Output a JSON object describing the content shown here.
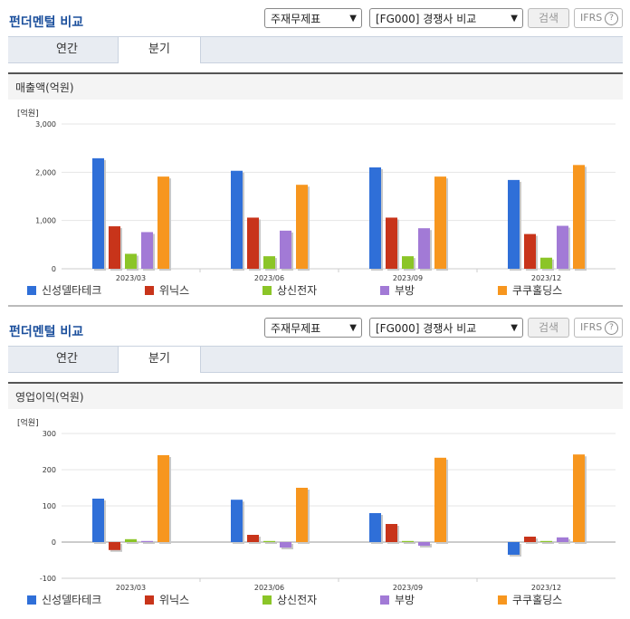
{
  "panels": [
    {
      "title": "펀더멘털 비교",
      "select_statement": "주재무제표",
      "select_compare": "[FG000] 경쟁사 비교",
      "search_label": "검색",
      "ifrs_label": "IFRS",
      "help_icon": "?",
      "tabs": [
        "연간",
        "분기"
      ],
      "active_tab": "분기",
      "section_title": "매출액(억원)",
      "unit": "[억원]"
    },
    {
      "title": "펀더멘털 비교",
      "select_statement": "주재무제표",
      "select_compare": "[FG000] 경쟁사 비교",
      "search_label": "검색",
      "ifrs_label": "IFRS",
      "help_icon": "?",
      "tabs": [
        "연간",
        "분기"
      ],
      "active_tab": "분기",
      "section_title": "영업이익(억원)",
      "unit": "[억원]"
    }
  ],
  "chart_data": [
    {
      "type": "bar",
      "categories": [
        "2023/03",
        "2023/06",
        "2023/09",
        "2023/12"
      ],
      "ylim": [
        0,
        3000
      ],
      "yticks": [
        0,
        1000,
        2000,
        3000
      ],
      "ytick_labels": [
        "0",
        "1,000",
        "2,000",
        "3,000"
      ],
      "legend_position": "bottom",
      "series": [
        {
          "name": "신성델타테크",
          "color": "#2f6fd8",
          "values": [
            2290,
            2030,
            2100,
            1840
          ]
        },
        {
          "name": "위닉스",
          "color": "#c8341a",
          "values": [
            880,
            1060,
            1060,
            720
          ]
        },
        {
          "name": "상신전자",
          "color": "#8bc528",
          "values": [
            310,
            260,
            260,
            230
          ]
        },
        {
          "name": "부방",
          "color": "#a27ad6",
          "values": [
            760,
            790,
            840,
            890
          ]
        },
        {
          "name": "쿠쿠홀딩스",
          "color": "#f7961e",
          "values": [
            1910,
            1740,
            1910,
            2150
          ]
        }
      ]
    },
    {
      "type": "bar",
      "categories": [
        "2023/03",
        "2023/06",
        "2023/09",
        "2023/12"
      ],
      "ylim": [
        -100,
        300
      ],
      "yticks": [
        -100,
        0,
        100,
        200,
        300
      ],
      "ytick_labels": [
        "-100",
        "0",
        "100",
        "200",
        "300"
      ],
      "legend_position": "bottom",
      "series": [
        {
          "name": "신성델타테크",
          "color": "#2f6fd8",
          "values": [
            120,
            117,
            80,
            -35
          ]
        },
        {
          "name": "위닉스",
          "color": "#c8341a",
          "values": [
            -22,
            20,
            50,
            15
          ]
        },
        {
          "name": "상신전자",
          "color": "#8bc528",
          "values": [
            8,
            3,
            3,
            3
          ]
        },
        {
          "name": "부방",
          "color": "#a27ad6",
          "values": [
            3,
            -15,
            -10,
            13
          ]
        },
        {
          "name": "쿠쿠홀딩스",
          "color": "#f7961e",
          "values": [
            240,
            150,
            233,
            242
          ]
        }
      ]
    }
  ]
}
